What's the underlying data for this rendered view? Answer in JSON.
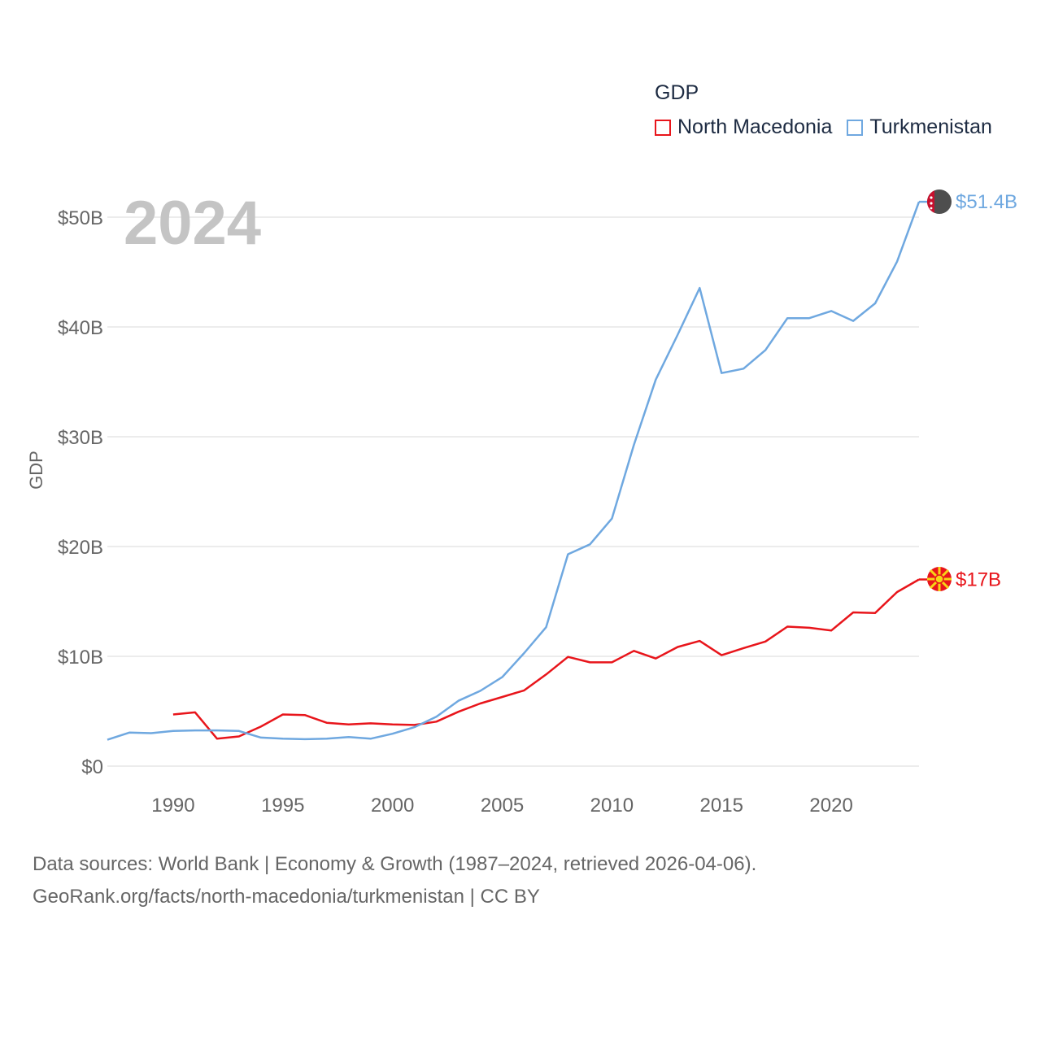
{
  "legend": {
    "title": "GDP",
    "items": [
      {
        "label": "North Macedonia",
        "color": "#e8151b"
      },
      {
        "label": "Turkmenistan",
        "color": "#6fa8e0"
      }
    ]
  },
  "footer": {
    "line1": "Data sources: World Bank | Economy & Growth (1987–2024, retrieved 2026-04-06).",
    "line2": "GeoRank.org/facts/north-macedonia/turkmenistan | CC BY"
  },
  "chart_data": {
    "type": "line",
    "title": "GDP",
    "year_label": "2024",
    "ylabel": "GDP",
    "xlabel": "",
    "xlim": [
      1987,
      2024
    ],
    "ylim": [
      0,
      50
    ],
    "x_ticks": [
      1990,
      1995,
      2000,
      2005,
      2010,
      2015,
      2020
    ],
    "x_tick_labels": [
      "1990",
      "1995",
      "2000",
      "2005",
      "2010",
      "2015",
      "2020"
    ],
    "y_ticks": [
      0,
      10,
      20,
      30,
      40,
      50
    ],
    "y_tick_labels": [
      "$0",
      "$10B",
      "$20B",
      "$30B",
      "$40B",
      "$50B"
    ],
    "grid": true,
    "legend_position": "top-right",
    "series": [
      {
        "name": "North Macedonia",
        "color": "#e8151b",
        "end_label": "$17B",
        "x": [
          1990,
          1991,
          1992,
          1993,
          1994,
          1995,
          1996,
          1997,
          1998,
          1999,
          2000,
          2001,
          2002,
          2003,
          2004,
          2005,
          2006,
          2007,
          2008,
          2009,
          2010,
          2011,
          2012,
          2013,
          2014,
          2015,
          2016,
          2017,
          2018,
          2019,
          2020,
          2021,
          2022,
          2023,
          2024
        ],
        "values": [
          4.7,
          4.9,
          2.5,
          2.7,
          3.6,
          4.7,
          4.65,
          3.95,
          3.8,
          3.9,
          3.8,
          3.75,
          4.05,
          4.95,
          5.7,
          6.3,
          6.9,
          8.35,
          9.95,
          9.45,
          9.45,
          10.5,
          9.8,
          10.85,
          11.4,
          10.1,
          10.75,
          11.35,
          12.7,
          12.6,
          12.35,
          14.0,
          13.95,
          15.85,
          17.0
        ]
      },
      {
        "name": "Turkmenistan",
        "color": "#6fa8e0",
        "end_label": "$51.4B",
        "x": [
          1987,
          1988,
          1989,
          1990,
          1991,
          1992,
          1993,
          1994,
          1995,
          1996,
          1997,
          1998,
          1999,
          2000,
          2001,
          2002,
          2003,
          2004,
          2005,
          2006,
          2007,
          2008,
          2009,
          2010,
          2011,
          2012,
          2013,
          2014,
          2015,
          2016,
          2017,
          2018,
          2019,
          2020,
          2021,
          2022,
          2023,
          2024
        ],
        "values": [
          2.4,
          3.05,
          3.0,
          3.2,
          3.25,
          3.25,
          3.2,
          2.6,
          2.5,
          2.45,
          2.5,
          2.65,
          2.5,
          2.95,
          3.55,
          4.5,
          5.95,
          6.85,
          8.1,
          10.3,
          12.65,
          19.3,
          20.2,
          22.55,
          29.25,
          35.2,
          39.3,
          43.55,
          35.8,
          36.2,
          37.9,
          40.8,
          40.8,
          41.45,
          40.55,
          42.15,
          45.95,
          51.4
        ]
      }
    ]
  },
  "source_note": "Data sources: World Bank"
}
